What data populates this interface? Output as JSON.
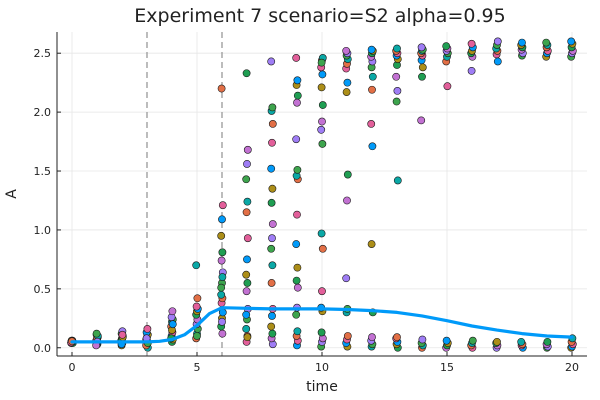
{
  "chart_data": {
    "type": "scatter",
    "title": "Experiment 7  scenario=S2  alpha=0.95",
    "xlabel": "time",
    "ylabel": "A",
    "xlim": [
      -0.6,
      20.6
    ],
    "ylim": [
      -0.07,
      2.68
    ],
    "x_ticks": [
      0,
      5,
      10,
      15,
      20
    ],
    "x_tick_labels": [
      "0",
      "5",
      "10",
      "15",
      "20"
    ],
    "y_ticks": [
      0.0,
      0.5,
      1.0,
      1.5,
      2.0,
      2.5
    ],
    "y_tick_labels": [
      "0.0",
      "0.5",
      "1.0",
      "1.5",
      "2.0",
      "2.5"
    ],
    "grid": true,
    "legend": "none",
    "vlines": [
      3,
      6
    ],
    "colors": {
      "line": "#009af9",
      "vline": "#999999",
      "frame": "#222222",
      "palette": [
        "#009af9",
        "#e26f46",
        "#3da44d",
        "#c271d2",
        "#ac8e18",
        "#e25f9a",
        "#0aa8a6",
        "#9f7df5",
        "#1f9e52"
      ]
    },
    "line": {
      "x": [
        0,
        1,
        2,
        3,
        3.5,
        4,
        4.5,
        5,
        5.5,
        6,
        7,
        8,
        9,
        10,
        11,
        12,
        13,
        14,
        15,
        16,
        17,
        18,
        19,
        20
      ],
      "y": [
        0.05,
        0.05,
        0.05,
        0.05,
        0.055,
        0.07,
        0.11,
        0.19,
        0.29,
        0.34,
        0.335,
        0.33,
        0.33,
        0.33,
        0.325,
        0.315,
        0.3,
        0.27,
        0.23,
        0.185,
        0.15,
        0.12,
        0.1,
        0.09
      ]
    },
    "points": [
      {
        "x": 0,
        "y": [
          0.04,
          0.045,
          0.05,
          0.055,
          0.06,
          0.045,
          0.05,
          0.04,
          0.06,
          0.05,
          0.045,
          0.055
        ]
      },
      {
        "x": 1,
        "y": [
          0.03,
          0.05,
          0.07,
          0.09,
          0.11,
          0.04,
          0.06,
          0.08,
          0.1,
          0.12,
          0.05,
          0.02
        ]
      },
      {
        "x": 2,
        "y": [
          0.02,
          0.04,
          0.06,
          0.08,
          0.1,
          0.12,
          0.14,
          0.05,
          0.07,
          0.09,
          0.03,
          0.11
        ]
      },
      {
        "x": 3,
        "y": [
          0.0,
          0.03,
          0.05,
          0.07,
          0.09,
          0.11,
          0.13,
          0.16,
          0.02,
          0.06,
          0.04,
          0.08
        ]
      },
      {
        "x": 4,
        "y": [
          0.05,
          0.07,
          0.1,
          0.13,
          0.18,
          0.22,
          0.24,
          0.26,
          0.31,
          0.08,
          0.15,
          0.2
        ]
      },
      {
        "x": 5,
        "y": [
          0.08,
          0.12,
          0.16,
          0.2,
          0.24,
          0.28,
          0.31,
          0.33,
          0.35,
          0.42,
          0.7,
          0.1
        ]
      },
      {
        "x": 6,
        "y": [
          0.12,
          0.18,
          0.25,
          0.3,
          0.38,
          0.42,
          0.45,
          0.55,
          0.64,
          0.74,
          0.81,
          0.95,
          1.09,
          1.21,
          2.2,
          0.6,
          0.51,
          0.22
        ]
      },
      {
        "x": 7,
        "y": [
          0.05,
          0.1,
          0.16,
          0.24,
          0.33,
          0.48,
          0.55,
          0.62,
          0.75,
          0.93,
          1.15,
          1.24,
          1.43,
          1.56,
          1.68,
          2.33,
          0.09,
          0.28
        ]
      },
      {
        "x": 8,
        "y": [
          0.03,
          0.08,
          0.12,
          0.18,
          0.27,
          0.33,
          0.55,
          0.7,
          0.84,
          0.93,
          1.05,
          1.23,
          1.35,
          1.52,
          1.74,
          1.9,
          2.01,
          2.04,
          2.43
        ]
      },
      {
        "x": 9,
        "y": [
          0.02,
          0.06,
          0.1,
          0.14,
          0.28,
          0.34,
          0.51,
          0.57,
          0.68,
          0.88,
          1.13,
          1.43,
          1.46,
          1.51,
          1.77,
          2.08,
          2.14,
          2.23,
          2.27,
          2.46
        ]
      },
      {
        "x": 10,
        "y": [
          0.01,
          0.05,
          0.08,
          0.13,
          0.31,
          0.34,
          0.48,
          0.84,
          0.97,
          1.73,
          1.85,
          1.92,
          2.06,
          2.21,
          2.32,
          2.38,
          2.44,
          2.46,
          2.42
        ]
      },
      {
        "x": 11,
        "y": [
          0.01,
          0.04,
          0.07,
          0.1,
          0.3,
          0.33,
          0.59,
          1.25,
          1.47,
          2.17,
          2.25,
          2.37,
          2.41,
          2.45,
          2.48,
          2.5,
          2.52
        ]
      },
      {
        "x": 12,
        "y": [
          0.01,
          0.03,
          0.06,
          0.09,
          0.3,
          0.88,
          1.71,
          1.9,
          2.19,
          2.3,
          2.38,
          2.43,
          2.47,
          2.5,
          2.52,
          2.53
        ]
      },
      {
        "x": 13,
        "y": [
          0.0,
          0.03,
          0.05,
          0.08,
          0.09,
          1.42,
          2.09,
          2.18,
          2.3,
          2.4,
          2.45,
          2.48,
          2.5,
          2.52,
          2.54
        ]
      },
      {
        "x": 14,
        "y": [
          0.0,
          0.02,
          0.04,
          0.07,
          1.93,
          2.3,
          2.38,
          2.44,
          2.48,
          2.5,
          2.52,
          2.53,
          2.55
        ]
      },
      {
        "x": 15,
        "y": [
          0.0,
          0.02,
          0.04,
          0.06,
          2.22,
          2.43,
          2.47,
          2.5,
          2.52,
          2.54,
          2.56
        ]
      },
      {
        "x": 16,
        "y": [
          0.0,
          0.02,
          0.04,
          0.06,
          2.35,
          2.47,
          2.5,
          2.52,
          2.55,
          2.58
        ]
      },
      {
        "x": 17,
        "y": [
          0.0,
          0.02,
          0.04,
          0.05,
          2.43,
          2.49,
          2.52,
          2.54,
          2.57,
          2.6
        ]
      },
      {
        "x": 18,
        "y": [
          0.0,
          0.02,
          0.03,
          0.05,
          2.48,
          2.5,
          2.53,
          2.55,
          2.57,
          2.59
        ]
      },
      {
        "x": 19,
        "y": [
          0.0,
          0.01,
          0.03,
          0.05,
          2.47,
          2.5,
          2.52,
          2.55,
          2.57,
          2.59
        ]
      },
      {
        "x": 20,
        "y": [
          0.0,
          0.01,
          0.03,
          0.05,
          0.08,
          2.47,
          2.5,
          2.52,
          2.55,
          2.58,
          2.6
        ]
      }
    ]
  }
}
